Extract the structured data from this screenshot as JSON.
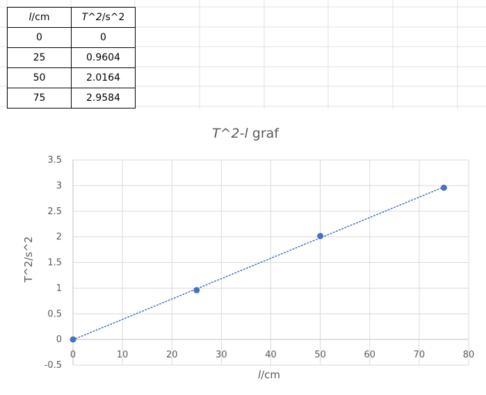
{
  "table": {
    "headers": [
      {
        "var": "l",
        "unit": "/cm"
      },
      {
        "var": "T^2",
        "unit": "/s^2"
      }
    ],
    "rows": [
      [
        "0",
        "0"
      ],
      [
        "25",
        "0.9604"
      ],
      [
        "50",
        "2.0164"
      ],
      [
        "75",
        "2.9584"
      ]
    ]
  },
  "chart_data": {
    "type": "scatter",
    "title_parts": [
      "T^2-",
      "l",
      " graf"
    ],
    "xlabel_parts": [
      "l",
      "/cm"
    ],
    "ylabel": "T^2/s^2",
    "x": [
      0,
      25,
      50,
      75
    ],
    "y": [
      0,
      0.9604,
      2.0164,
      2.9584
    ],
    "xlim": [
      0,
      80
    ],
    "ylim": [
      -0.5,
      3.5
    ],
    "x_ticks": [
      "0",
      "10",
      "20",
      "30",
      "40",
      "50",
      "60",
      "70",
      "80"
    ],
    "y_ticks": [
      "-0.5",
      "0",
      "0.5",
      "1",
      "1.5",
      "2",
      "2.5",
      "3",
      "3.5"
    ],
    "trendline": "linear",
    "grid": true,
    "legend": "none",
    "colors": {
      "marker": "#4472C4",
      "trendline": "#4472C4",
      "gridline": "#D9D9D9",
      "text": "#595959"
    }
  }
}
